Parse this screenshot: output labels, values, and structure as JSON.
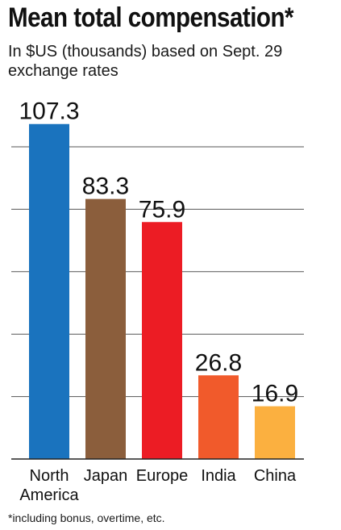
{
  "chart_data": {
    "type": "bar",
    "title": "Mean total compensation*",
    "subtitle": "In $US (thousands) based on Sept. 29 exchange rates",
    "footnote": "*including bonus, overtime, etc.",
    "categories": [
      "North America",
      "Japan",
      "Europe",
      "India",
      "China"
    ],
    "values": [
      107.3,
      83.3,
      75.9,
      26.8,
      16.9
    ],
    "colors": [
      "#1a73be",
      "#8b5e3c",
      "#ec1c24",
      "#f15a2b",
      "#fbb040"
    ],
    "gridline_color": "#555555",
    "ylim": [
      0,
      120
    ],
    "gridlines": [
      20,
      40,
      60,
      80,
      100
    ],
    "grid": true,
    "xlabel": "",
    "ylabel": ""
  }
}
